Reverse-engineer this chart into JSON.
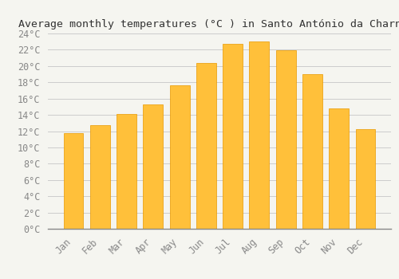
{
  "title": "Average monthly temperatures (°C ) in Santo António da Charneca",
  "months": [
    "Jan",
    "Feb",
    "Mar",
    "Apr",
    "May",
    "Jun",
    "Jul",
    "Aug",
    "Sep",
    "Oct",
    "Nov",
    "Dec"
  ],
  "temperatures": [
    11.8,
    12.7,
    14.1,
    15.3,
    17.6,
    20.4,
    22.7,
    23.0,
    21.9,
    19.0,
    14.8,
    12.2
  ],
  "bar_color_top": "#FFC03A",
  "bar_color_bottom": "#F5A800",
  "bar_edge_color": "#E89800",
  "ylim": [
    0,
    24
  ],
  "ytick_step": 2,
  "background_color": "#F5F5F0",
  "grid_color": "#CCCCCC",
  "title_fontsize": 9.5,
  "tick_fontsize": 8.5,
  "font_family": "monospace",
  "bar_width": 0.75
}
